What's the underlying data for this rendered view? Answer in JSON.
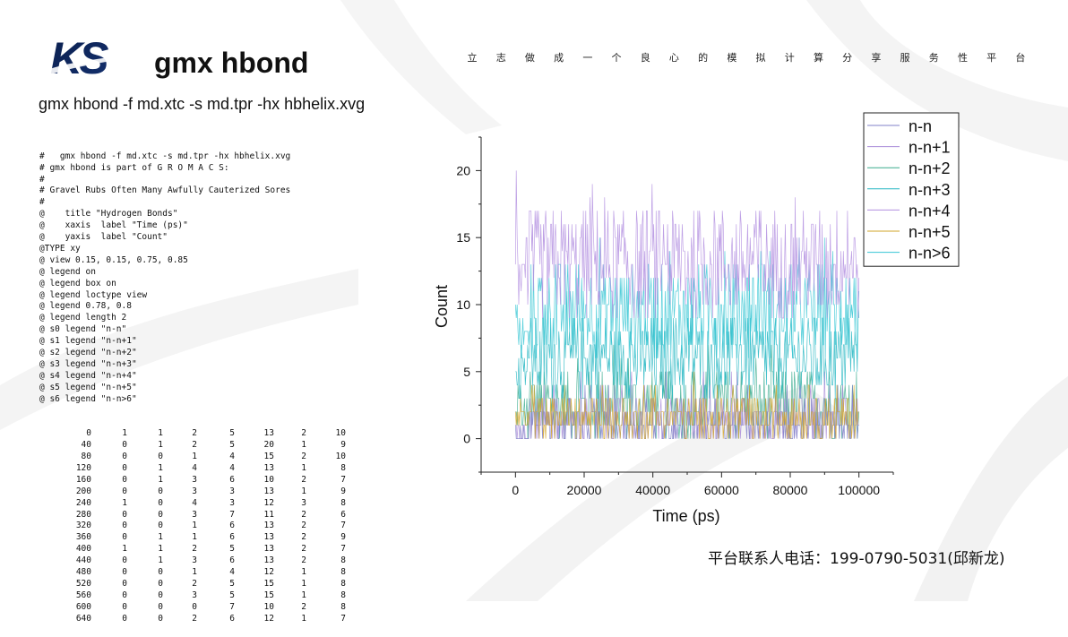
{
  "header": {
    "logo_text": "KS",
    "title": "gmx hbond",
    "slogan_chars": [
      "立",
      "志",
      "做",
      "成",
      "一",
      "个",
      "良",
      "心",
      "的",
      "模",
      "拟",
      "计",
      "算",
      "分",
      "享",
      "服",
      "务",
      "性",
      "平",
      "台"
    ]
  },
  "command": "gmx hbond -f md.xtc -s md.tpr -hx hbhelix.xvg",
  "xvg_header": [
    "#   gmx hbond -f md.xtc -s md.tpr -hx hbhelix.xvg",
    "# gmx hbond is part of G R O M A C S:",
    "#",
    "# Gravel Rubs Often Many Awfully Cauterized Sores",
    "#",
    "@    title \"Hydrogen Bonds\"",
    "@    xaxis  label \"Time (ps)\"",
    "@    yaxis  label \"Count\"",
    "@TYPE xy",
    "@ view 0.15, 0.15, 0.75, 0.85",
    "@ legend on",
    "@ legend box on",
    "@ legend loctype view",
    "@ legend 0.78, 0.8",
    "@ legend length 2",
    "@ s0 legend \"n-n\"",
    "@ s1 legend \"n-n+1\"",
    "@ s2 legend \"n-n+2\"",
    "@ s3 legend \"n-n+3\"",
    "@ s4 legend \"n-n+4\"",
    "@ s5 legend \"n-n+5\"",
    "@ s6 legend \"n-n>6\""
  ],
  "xvg_rows": [
    [
      "0",
      "1",
      "1",
      "2",
      "5",
      "13",
      "2",
      "10"
    ],
    [
      "40",
      "0",
      "1",
      "2",
      "5",
      "20",
      "1",
      "9"
    ],
    [
      "80",
      "0",
      "0",
      "1",
      "4",
      "15",
      "2",
      "10"
    ],
    [
      "120",
      "0",
      "1",
      "4",
      "4",
      "13",
      "1",
      "8"
    ],
    [
      "160",
      "0",
      "1",
      "3",
      "6",
      "10",
      "2",
      "7"
    ],
    [
      "200",
      "0",
      "0",
      "3",
      "3",
      "13",
      "1",
      "9"
    ],
    [
      "240",
      "1",
      "0",
      "4",
      "3",
      "12",
      "3",
      "8"
    ],
    [
      "280",
      "0",
      "0",
      "3",
      "7",
      "11",
      "2",
      "6"
    ],
    [
      "320",
      "0",
      "0",
      "1",
      "6",
      "13",
      "2",
      "7"
    ],
    [
      "360",
      "0",
      "1",
      "1",
      "6",
      "13",
      "2",
      "9"
    ],
    [
      "400",
      "1",
      "1",
      "2",
      "5",
      "13",
      "2",
      "7"
    ],
    [
      "440",
      "0",
      "1",
      "3",
      "6",
      "13",
      "2",
      "8"
    ],
    [
      "480",
      "0",
      "0",
      "1",
      "4",
      "12",
      "1",
      "8"
    ],
    [
      "520",
      "0",
      "0",
      "2",
      "5",
      "15",
      "1",
      "8"
    ],
    [
      "560",
      "0",
      "0",
      "3",
      "5",
      "15",
      "1",
      "8"
    ],
    [
      "600",
      "0",
      "0",
      "0",
      "7",
      "10",
      "2",
      "8"
    ],
    [
      "640",
      "0",
      "0",
      "2",
      "6",
      "12",
      "1",
      "7"
    ]
  ],
  "chart_data": {
    "type": "line",
    "title": "Hydrogen Bonds",
    "xlabel": "Time (ps)",
    "ylabel": "Count",
    "xlim": [
      -10000,
      110000
    ],
    "ylim": [
      -2.5,
      22.5
    ],
    "xticks": [
      0,
      20000,
      40000,
      60000,
      80000,
      100000
    ],
    "yticks": [
      0,
      5,
      10,
      15,
      20
    ],
    "legend_position": "top-right",
    "series": [
      {
        "name": "n-n",
        "color": "#8080c8",
        "sample_x": [
          0,
          40,
          80,
          120,
          160,
          200,
          240,
          280,
          320,
          360,
          400,
          440,
          480,
          520,
          560,
          600,
          640
        ],
        "sample_y": [
          1,
          0,
          0,
          0,
          0,
          0,
          1,
          0,
          0,
          0,
          1,
          0,
          0,
          0,
          0,
          0,
          0
        ],
        "typical_range": [
          0,
          2
        ]
      },
      {
        "name": "n-n+1",
        "color": "#a98bd8",
        "sample_x": [
          0,
          40,
          80,
          120,
          160,
          200,
          240,
          280,
          320,
          360,
          400,
          440,
          480,
          520,
          560,
          600,
          640
        ],
        "sample_y": [
          1,
          1,
          0,
          1,
          1,
          0,
          0,
          0,
          0,
          1,
          1,
          1,
          0,
          0,
          0,
          0,
          0
        ],
        "typical_range": [
          0,
          3
        ]
      },
      {
        "name": "n-n+2",
        "color": "#3aab8e",
        "sample_x": [
          0,
          40,
          80,
          120,
          160,
          200,
          240,
          280,
          320,
          360,
          400,
          440,
          480,
          520,
          560,
          600,
          640
        ],
        "sample_y": [
          2,
          2,
          1,
          4,
          3,
          3,
          4,
          3,
          1,
          1,
          2,
          3,
          1,
          2,
          3,
          0,
          2
        ],
        "typical_range": [
          0,
          5
        ]
      },
      {
        "name": "n-n+3",
        "color": "#25b6c2",
        "sample_x": [
          0,
          40,
          80,
          120,
          160,
          200,
          240,
          280,
          320,
          360,
          400,
          440,
          480,
          520,
          560,
          600,
          640
        ],
        "sample_y": [
          5,
          5,
          4,
          4,
          6,
          3,
          3,
          7,
          6,
          6,
          5,
          6,
          4,
          5,
          5,
          7,
          6
        ],
        "typical_range": [
          3,
          9
        ]
      },
      {
        "name": "n-n+4",
        "color": "#b38fe0",
        "sample_x": [
          0,
          40,
          80,
          120,
          160,
          200,
          240,
          280,
          320,
          360,
          400,
          440,
          480,
          520,
          560,
          600,
          640
        ],
        "sample_y": [
          13,
          20,
          15,
          13,
          10,
          13,
          12,
          11,
          13,
          13,
          13,
          13,
          12,
          15,
          15,
          10,
          12
        ],
        "typical_range": [
          9,
          17
        ]
      },
      {
        "name": "n-n+5",
        "color": "#d2a52a",
        "sample_x": [
          0,
          40,
          80,
          120,
          160,
          200,
          240,
          280,
          320,
          360,
          400,
          440,
          480,
          520,
          560,
          600,
          640
        ],
        "sample_y": [
          2,
          1,
          2,
          1,
          2,
          1,
          3,
          2,
          2,
          2,
          2,
          2,
          1,
          1,
          1,
          2,
          1
        ],
        "typical_range": [
          0,
          3
        ]
      },
      {
        "name": "n-n>6",
        "color": "#35c6d4",
        "sample_x": [
          0,
          40,
          80,
          120,
          160,
          200,
          240,
          280,
          320,
          360,
          400,
          440,
          480,
          520,
          560,
          600,
          640
        ],
        "sample_y": [
          10,
          9,
          10,
          8,
          7,
          9,
          8,
          6,
          7,
          9,
          7,
          8,
          8,
          8,
          8,
          8,
          7
        ],
        "typical_range": [
          6,
          13
        ]
      }
    ]
  },
  "footer": {
    "contact": "平台联系人电话：199-0790-5031(邱新龙)"
  }
}
